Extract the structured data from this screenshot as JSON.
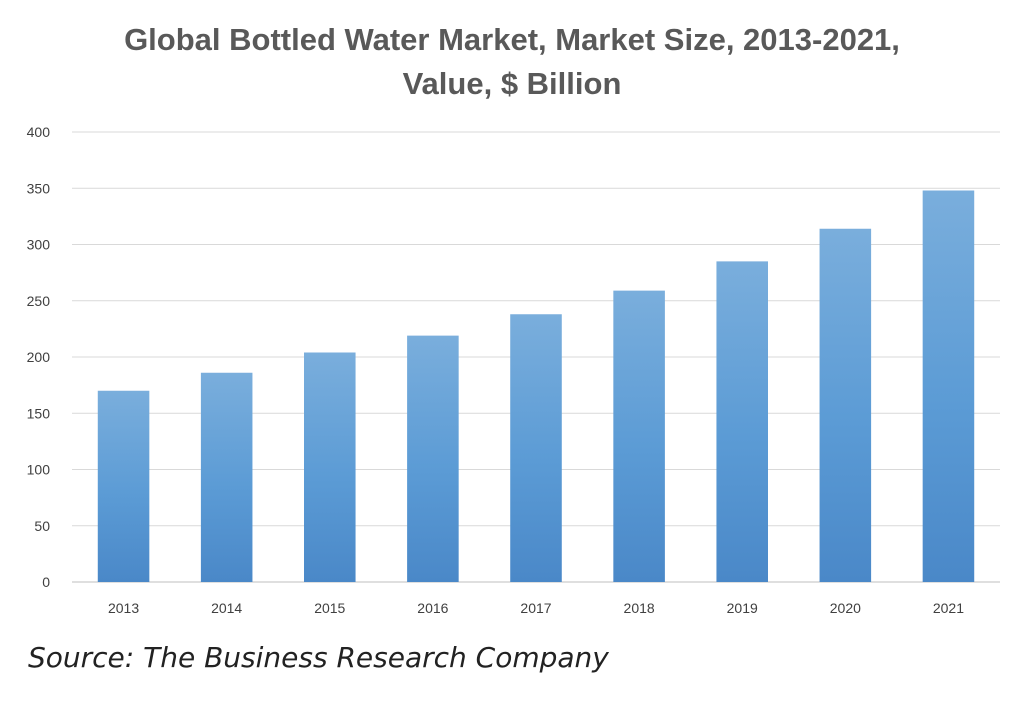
{
  "chart_data": {
    "type": "bar",
    "title": "Global Bottled Water Market, Market Size, 2013-2021, Value, $ Billion",
    "categories": [
      "2013",
      "2014",
      "2015",
      "2016",
      "2017",
      "2018",
      "2019",
      "2020",
      "2021"
    ],
    "values": [
      170,
      186,
      204,
      219,
      238,
      259,
      285,
      314,
      348
    ],
    "xlabel": "",
    "ylabel": "",
    "ylim": [
      0,
      400
    ],
    "yticks": [
      0,
      50,
      100,
      150,
      200,
      250,
      300,
      350,
      400
    ],
    "grid": true,
    "legend": "none",
    "bar_color": "#5b9bd5"
  },
  "source": "Source: The Business Research Company"
}
